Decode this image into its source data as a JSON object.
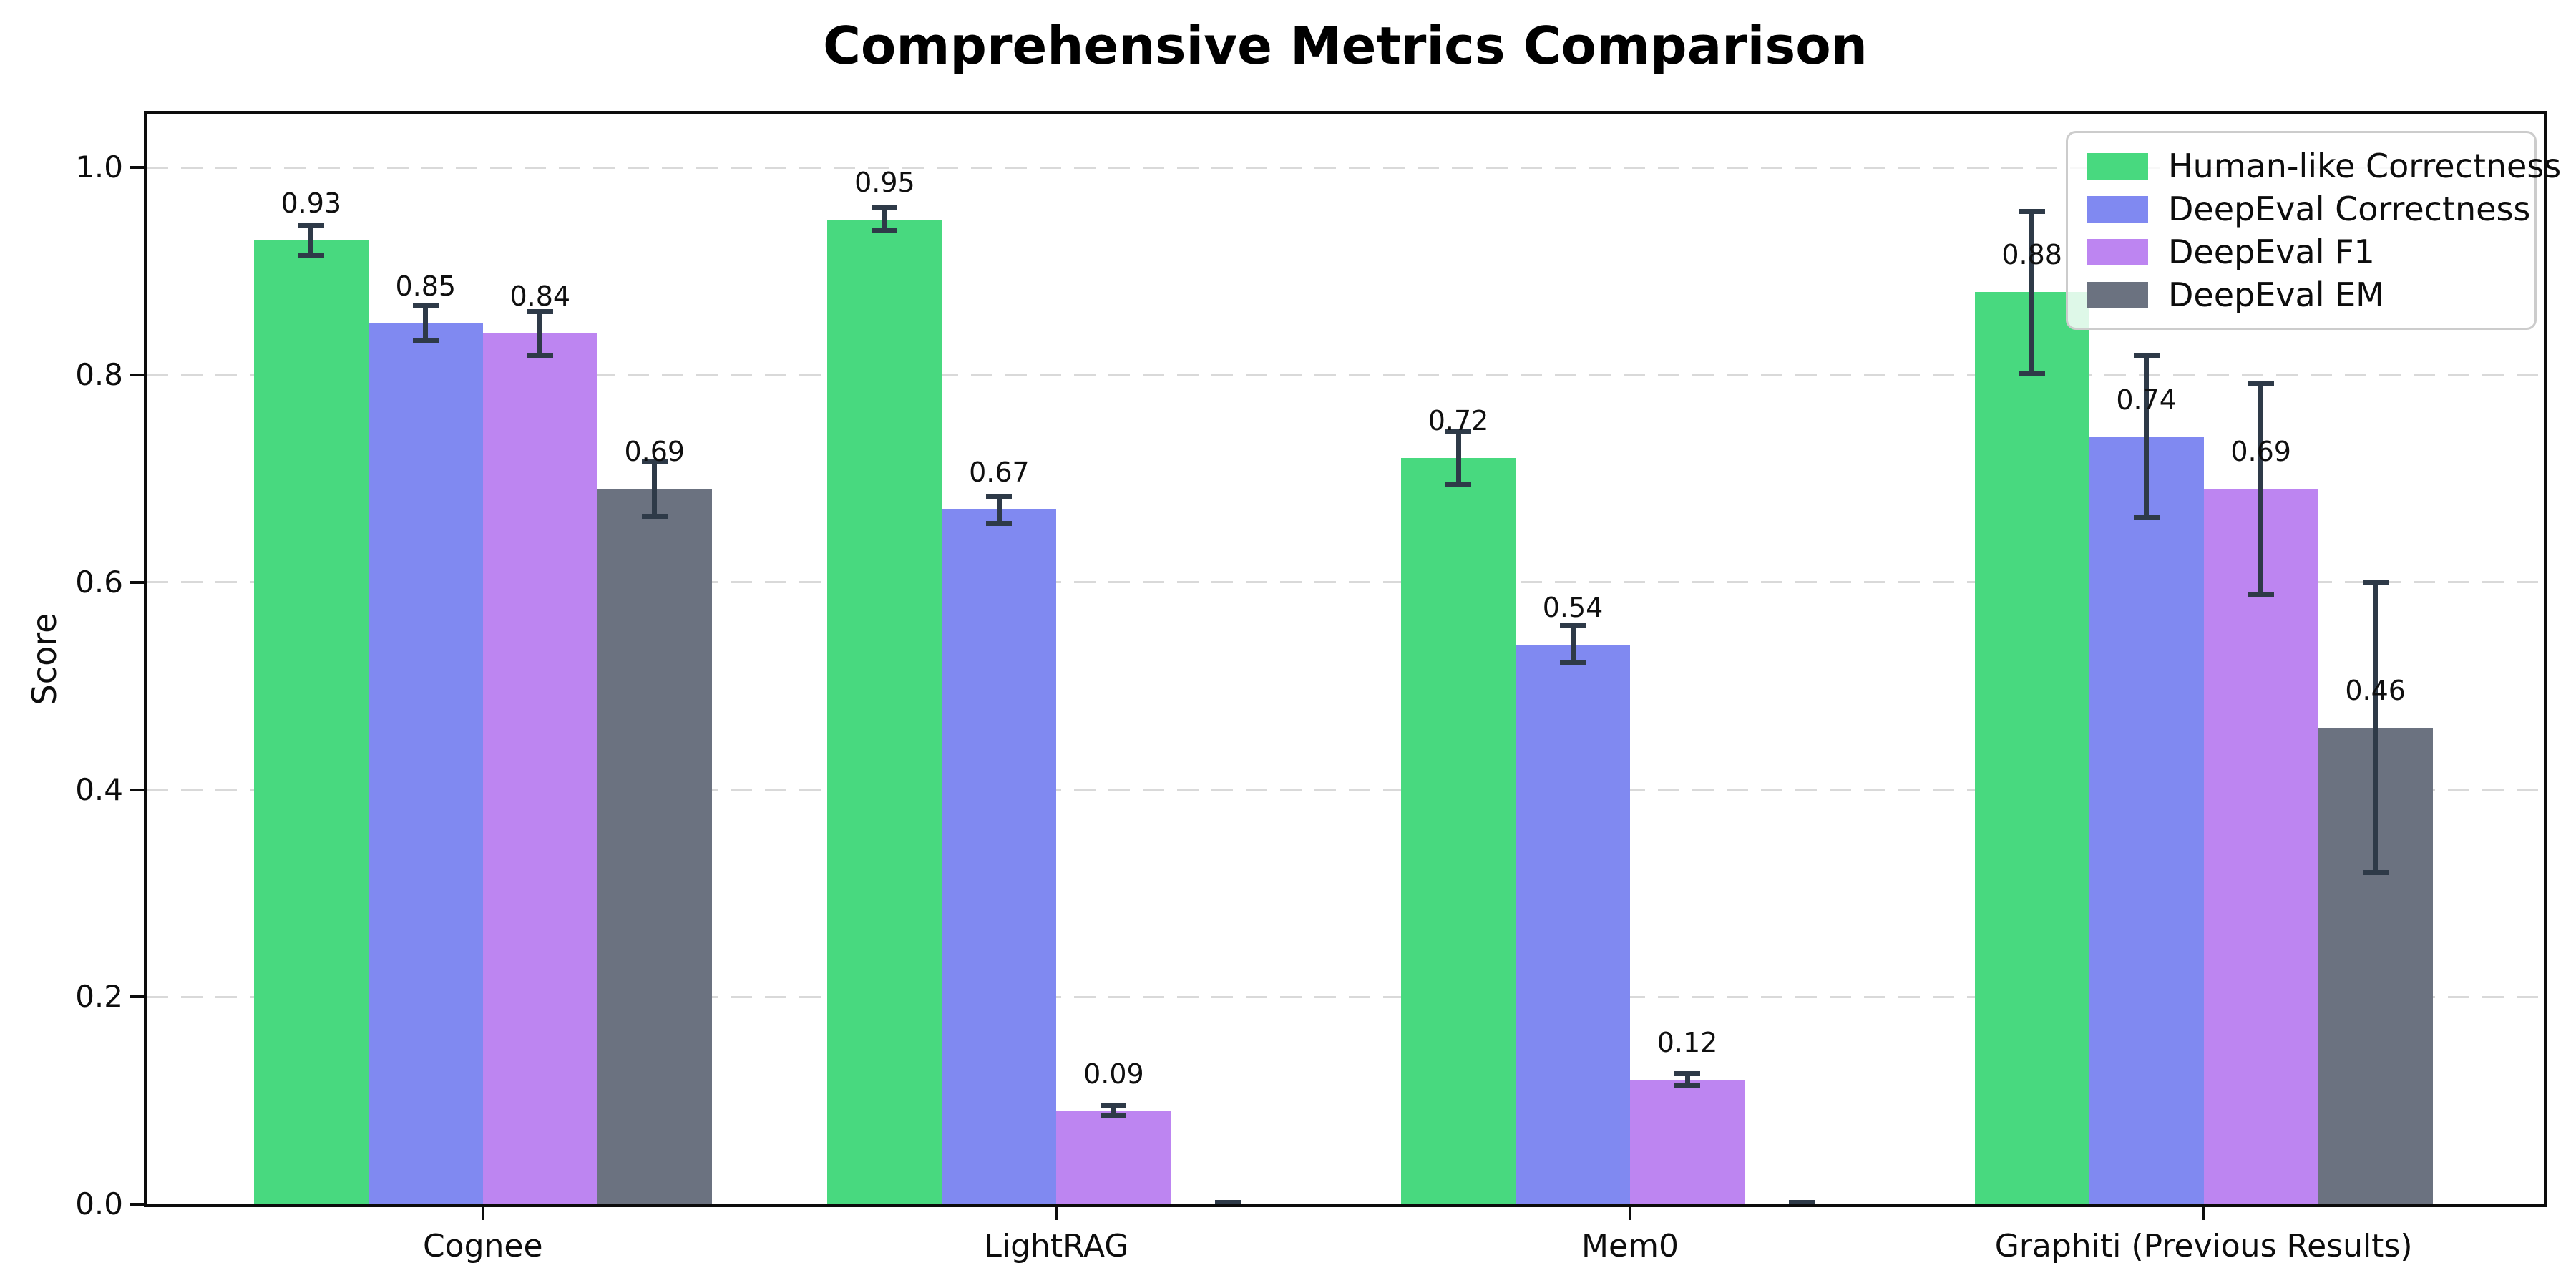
{
  "chart_data": {
    "type": "bar",
    "title": "Comprehensive Metrics Comparison",
    "xlabel": "",
    "ylabel": "Score",
    "categories": [
      "Cognee",
      "LightRAG",
      "Mem0",
      "Graphiti (Previous Results)"
    ],
    "series": [
      {
        "name": "Human-like Correctness",
        "color": "#48d97f",
        "values": [
          0.93,
          0.95,
          0.72,
          0.88
        ],
        "errors": [
          0.015,
          0.011,
          0.026,
          0.078
        ]
      },
      {
        "name": "DeepEval Correctness",
        "color": "#8089f1",
        "values": [
          0.85,
          0.67,
          0.54,
          0.74
        ],
        "errors": [
          0.017,
          0.013,
          0.018,
          0.078
        ]
      },
      {
        "name": "DeepEval F1",
        "color": "#bd85f1",
        "values": [
          0.84,
          0.09,
          0.12,
          0.69
        ],
        "errors": [
          0.021,
          0.005,
          0.006,
          0.102
        ]
      },
      {
        "name": "DeepEval EM",
        "color": "#6b7280",
        "values": [
          0.69,
          0.0,
          0.0,
          0.46
        ],
        "errors": [
          0.027,
          0.002,
          0.002,
          0.14
        ]
      }
    ],
    "value_labels_shown_for_nonzero_only": true,
    "ylim": [
      0,
      1.052
    ],
    "yticks": [
      "0.0",
      "0.2",
      "0.4",
      "0.6",
      "0.8",
      "1.0"
    ],
    "grid": "horizontal dashed",
    "legend_position": "upper right",
    "colors": {
      "error_bar": "#2e3a48",
      "gridline": "#d9d9d9",
      "axis": "#0c0c0c",
      "legend_border": "#cccccc"
    }
  }
}
